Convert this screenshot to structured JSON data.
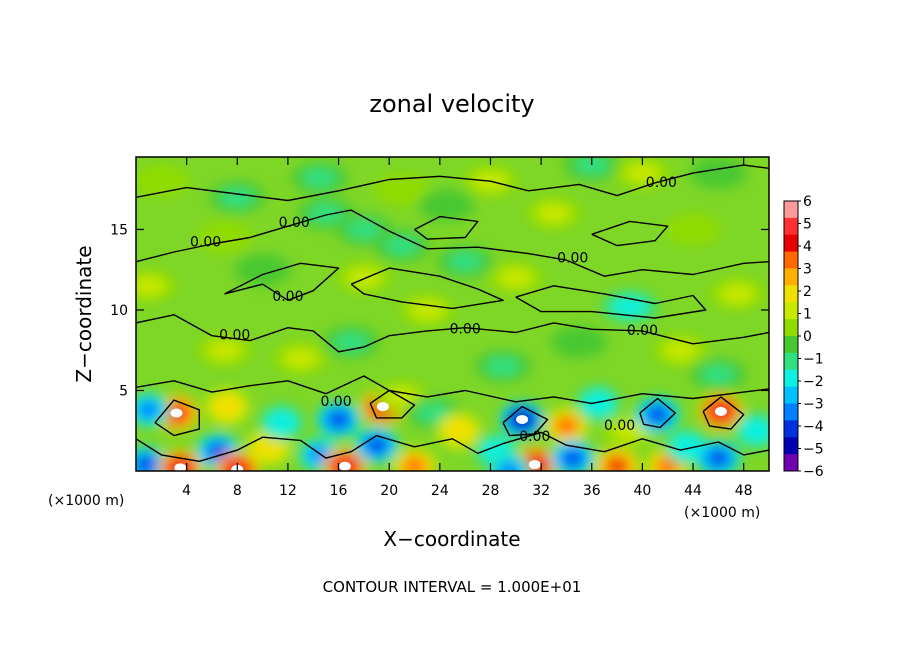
{
  "chart_data": {
    "type": "heatmap",
    "title": "zonal velocity",
    "xlabel": "X−coordinate",
    "ylabel": "Z−coordinate",
    "x_unit": "(×1000 m)",
    "z_unit": "(×1000 m)",
    "xlim": [
      0,
      50
    ],
    "ylim": [
      0,
      19.5
    ],
    "x_ticks": [
      "4",
      "8",
      "12",
      "16",
      "20",
      "24",
      "28",
      "32",
      "36",
      "40",
      "44",
      "48"
    ],
    "y_ticks": [
      "5",
      "10",
      "15"
    ],
    "colorbar": {
      "ticks": [
        "6",
        "5",
        "4",
        "3",
        "2",
        "1",
        "0",
        "−1",
        "−2",
        "−3",
        "−4",
        "−5",
        "−6"
      ],
      "colors": [
        "#ff9a9a",
        "#ff3030",
        "#e80000",
        "#ff6a00",
        "#ffb000",
        "#f0e000",
        "#c8e800",
        "#90dc00",
        "#48c830",
        "#30e080",
        "#10f0e0",
        "#00c0ff",
        "#0080ff",
        "#0030e0",
        "#0000b0",
        "#7000b0"
      ]
    },
    "contour_labels": [
      {
        "text": "0.00",
        "x": 5.5,
        "z": 14.2
      },
      {
        "text": "0.00",
        "x": 12.5,
        "z": 15.4
      },
      {
        "text": "0.00",
        "x": 12.0,
        "z": 10.8
      },
      {
        "text": "0.00",
        "x": 7.8,
        "z": 8.4
      },
      {
        "text": "0.00",
        "x": 15.8,
        "z": 4.3
      },
      {
        "text": "0.00",
        "x": 26.0,
        "z": 8.8
      },
      {
        "text": "0.00",
        "x": 34.5,
        "z": 13.2
      },
      {
        "text": "0.00",
        "x": 41.5,
        "z": 17.9
      },
      {
        "text": "0.00",
        "x": 40.0,
        "z": 8.7
      },
      {
        "text": "0.00",
        "x": 31.5,
        "z": 2.1
      },
      {
        "text": "0.00",
        "x": 38.2,
        "z": 2.8
      }
    ],
    "features": [
      {
        "x": 3.2,
        "z": 3.6,
        "value": 5.5
      },
      {
        "x": 1.0,
        "z": 3.8,
        "value": -4
      },
      {
        "x": 0.8,
        "z": 0.4,
        "value": -5
      },
      {
        "x": 3.5,
        "z": 0.2,
        "value": 6
      },
      {
        "x": 6.5,
        "z": 1.2,
        "value": -5
      },
      {
        "x": 8.0,
        "z": 0.1,
        "value": 6
      },
      {
        "x": 7.2,
        "z": 4.0,
        "value": 3
      },
      {
        "x": 10.5,
        "z": 1.5,
        "value": 3
      },
      {
        "x": 11.5,
        "z": 3.0,
        "value": -3
      },
      {
        "x": 14.5,
        "z": 1.0,
        "value": -4
      },
      {
        "x": 16.0,
        "z": 3.2,
        "value": -5
      },
      {
        "x": 16.5,
        "z": 0.3,
        "value": 6
      },
      {
        "x": 19.5,
        "z": 4.0,
        "value": 6
      },
      {
        "x": 19.0,
        "z": 1.6,
        "value": -5
      },
      {
        "x": 22.0,
        "z": 0.3,
        "value": 4
      },
      {
        "x": 21.0,
        "z": 4.6,
        "value": 2
      },
      {
        "x": 23.5,
        "z": 3.6,
        "value": -2
      },
      {
        "x": 25.5,
        "z": 2.5,
        "value": 3
      },
      {
        "x": 28.5,
        "z": 1.2,
        "value": -3
      },
      {
        "x": 30.5,
        "z": 3.2,
        "value": -6
      },
      {
        "x": 31.5,
        "z": 0.4,
        "value": 6
      },
      {
        "x": 29.5,
        "z": 0.0,
        "value": -4
      },
      {
        "x": 34.0,
        "z": 2.8,
        "value": 4
      },
      {
        "x": 34.5,
        "z": 0.8,
        "value": -5
      },
      {
        "x": 36.5,
        "z": 4.2,
        "value": -3
      },
      {
        "x": 38.0,
        "z": 0.3,
        "value": 5
      },
      {
        "x": 39.0,
        "z": 2.5,
        "value": 2
      },
      {
        "x": 41.2,
        "z": 3.5,
        "value": -5
      },
      {
        "x": 42.0,
        "z": 0.3,
        "value": 4
      },
      {
        "x": 43.5,
        "z": 1.5,
        "value": -3
      },
      {
        "x": 46.2,
        "z": 3.7,
        "value": 6
      },
      {
        "x": 46.0,
        "z": 0.8,
        "value": -5
      },
      {
        "x": 49.0,
        "z": 2.5,
        "value": -3
      },
      {
        "x": 1.0,
        "z": 11.5,
        "value": 1.8
      },
      {
        "x": 2.0,
        "z": 18.0,
        "value": 0.5
      },
      {
        "x": 7.0,
        "z": 14.5,
        "value": 0.8
      },
      {
        "x": 8.0,
        "z": 17.0,
        "value": -2
      },
      {
        "x": 15.0,
        "z": 16.0,
        "value": -1.5
      },
      {
        "x": 18.0,
        "z": 15.0,
        "value": -1.8
      },
      {
        "x": 21.0,
        "z": 14.0,
        "value": -1.2
      },
      {
        "x": 14.5,
        "z": 18.2,
        "value": -1.5
      },
      {
        "x": 21.0,
        "z": 17.5,
        "value": 0.6
      },
      {
        "x": 24.5,
        "z": 16.5,
        "value": -0.5
      },
      {
        "x": 28.0,
        "z": 18.0,
        "value": 2.2
      },
      {
        "x": 30.0,
        "z": 12.0,
        "value": 1.2
      },
      {
        "x": 23.0,
        "z": 10.0,
        "value": 1.6
      },
      {
        "x": 33.0,
        "z": 16.0,
        "value": 1.8
      },
      {
        "x": 36.0,
        "z": 19.0,
        "value": -1.8
      },
      {
        "x": 40.0,
        "z": 18.5,
        "value": 1.5
      },
      {
        "x": 46.0,
        "z": 18.5,
        "value": -0.8
      },
      {
        "x": 44.0,
        "z": 15.0,
        "value": 0.5
      },
      {
        "x": 39.0,
        "z": 10.2,
        "value": -2.5
      },
      {
        "x": 47.5,
        "z": 11.0,
        "value": 2.2
      },
      {
        "x": 7.0,
        "z": 7.5,
        "value": 1.6
      },
      {
        "x": 13.0,
        "z": 7.0,
        "value": 1.8
      },
      {
        "x": 17.0,
        "z": 8.0,
        "value": -1.2
      },
      {
        "x": 29.0,
        "z": 6.5,
        "value": -1.5
      },
      {
        "x": 35.0,
        "z": 8.0,
        "value": -0.8
      },
      {
        "x": 43.0,
        "z": 7.5,
        "value": 1.4
      },
      {
        "x": 18.0,
        "z": 12.0,
        "value": 2.0
      },
      {
        "x": 26.0,
        "z": 13.0,
        "value": -1.8
      },
      {
        "x": 10.0,
        "z": 12.5,
        "value": -0.8
      },
      {
        "x": 46.0,
        "z": 6.0,
        "value": -1.6
      }
    ]
  },
  "footer": {
    "contour_interval": "CONTOUR INTERVAL = 1.000E+01"
  }
}
